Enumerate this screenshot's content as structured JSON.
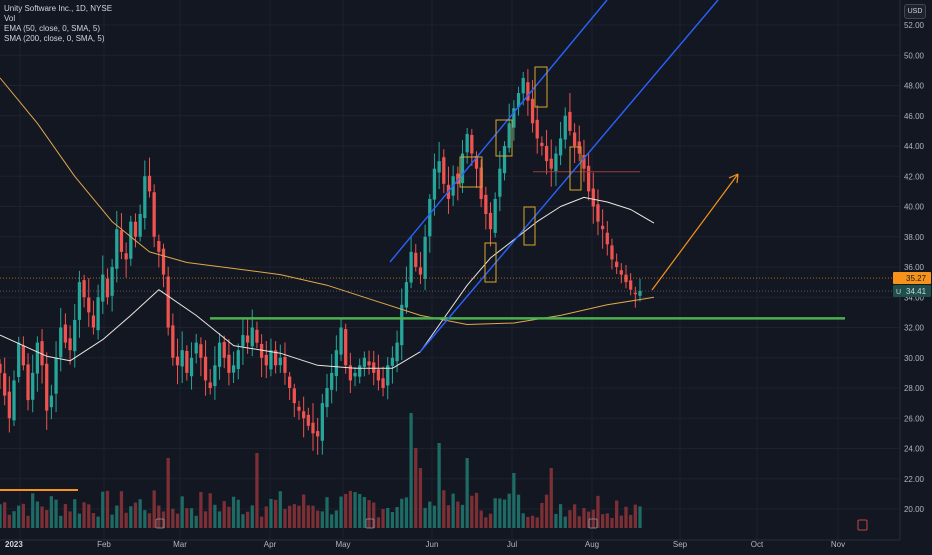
{
  "legend": {
    "title": "Unity Software Inc., 1D, NYSE",
    "vol": "Vol",
    "ema": "EMA (50, close, 0, SMA, 5)",
    "sma": "SMA (200, close, 0, SMA, 5)"
  },
  "currency_button": "USD",
  "price_tags": {
    "upper": "35.27",
    "lower": "34.41",
    "lower_prefix": "U"
  },
  "colors": {
    "background": "#131722",
    "up": "#26a69a",
    "down": "#ef5350",
    "vol_up": "#1e6a64",
    "vol_down": "#7c3036",
    "ema": "#e9e6e0",
    "sma": "#e0a84a",
    "channel": "#2962ff",
    "support": "#4caf50",
    "arrow": "#f7931a",
    "marker_box": "#d4a82a",
    "target_line": "#9c3a3a",
    "grid": "#1e2230"
  },
  "chart_data": {
    "type": "candlestick",
    "symbol": "Unity Software Inc., 1D, NYSE",
    "x_ticks": [
      "2023",
      "Feb",
      "Mar",
      "Apr",
      "May",
      "Jun",
      "Jul",
      "Aug",
      "Sep",
      "Oct",
      "Nov"
    ],
    "y_ticks": [
      "52.00",
      "50.00",
      "48.00",
      "46.00",
      "44.00",
      "42.00",
      "40.00",
      "38.00",
      "36.00",
      "34.00",
      "32.00",
      "30.00",
      "28.00",
      "26.00",
      "24.00",
      "22.00",
      "20.00"
    ],
    "ylim": [
      19.2,
      53
    ],
    "close_path": [
      29,
      27.5,
      26,
      28.5,
      31,
      29.5,
      27.2,
      29,
      31,
      29.5,
      26.5,
      27.5,
      30,
      32,
      31,
      30.5,
      32.5,
      35,
      34,
      33,
      32,
      34,
      35.5,
      34,
      36,
      38.5,
      37,
      36.5,
      39,
      38,
      39.5,
      42,
      41,
      38,
      37,
      35.5,
      32,
      30,
      29.5,
      30.5,
      29,
      30,
      31,
      30,
      28.5,
      28,
      29.5,
      31,
      30,
      29,
      29.5,
      30.5,
      31.5,
      31,
      32,
      31,
      30,
      29.5,
      30.5,
      29.5,
      30,
      29,
      28,
      27,
      26.5,
      26,
      25.5,
      25,
      24.8,
      27,
      28,
      29,
      30.5,
      32,
      29.5,
      28.5,
      29,
      29.5,
      30,
      29.5,
      29,
      28.5,
      28,
      29.5,
      30,
      31,
      33.5,
      35,
      37,
      36,
      35.5,
      38,
      40.5,
      42.5,
      43,
      41.5,
      40.5,
      42,
      41.5,
      43.5,
      44.8,
      43.5,
      42.5,
      40.5,
      39.5,
      38.5,
      40.5,
      42.5,
      44,
      45.5,
      46.5,
      47.5,
      48.5,
      47,
      45.5,
      44.5,
      44,
      43,
      42.5,
      43.5,
      44.5,
      46,
      45,
      44,
      43.5,
      42.5,
      41,
      40,
      39,
      38.5,
      37.5,
      36.5,
      36,
      35.5,
      35,
      34.5,
      34.2,
      34.41
    ],
    "ema50": [
      {
        "d": 0,
        "v": 31.5
      },
      {
        "d": 10,
        "v": 30.1
      },
      {
        "d": 15,
        "v": 29.8
      },
      {
        "d": 22,
        "v": 31.2
      },
      {
        "d": 28,
        "v": 32.8
      },
      {
        "d": 34,
        "v": 34.5
      },
      {
        "d": 42,
        "v": 32.8
      },
      {
        "d": 50,
        "v": 30.8
      },
      {
        "d": 60,
        "v": 30.3
      },
      {
        "d": 68,
        "v": 29.5
      },
      {
        "d": 76,
        "v": 29.3
      },
      {
        "d": 84,
        "v": 29.3
      },
      {
        "d": 90,
        "v": 30.4
      },
      {
        "d": 95,
        "v": 32.6
      },
      {
        "d": 100,
        "v": 34.8
      },
      {
        "d": 105,
        "v": 36.6
      },
      {
        "d": 110,
        "v": 37.8
      },
      {
        "d": 115,
        "v": 39.0
      },
      {
        "d": 120,
        "v": 40.0
      },
      {
        "d": 125,
        "v": 40.6
      },
      {
        "d": 130,
        "v": 40.3
      },
      {
        "d": 135,
        "v": 39.8
      },
      {
        "d": 140,
        "v": 38.9
      }
    ],
    "sma200": [
      {
        "d": 0,
        "v": 48.5
      },
      {
        "d": 8,
        "v": 45.5
      },
      {
        "d": 16,
        "v": 42.0
      },
      {
        "d": 24,
        "v": 39.0
      },
      {
        "d": 32,
        "v": 37.0
      },
      {
        "d": 40,
        "v": 36.3
      },
      {
        "d": 50,
        "v": 35.9
      },
      {
        "d": 60,
        "v": 35.5
      },
      {
        "d": 70,
        "v": 34.8
      },
      {
        "d": 80,
        "v": 33.8
      },
      {
        "d": 90,
        "v": 32.8
      },
      {
        "d": 100,
        "v": 32.2
      },
      {
        "d": 110,
        "v": 32.3
      },
      {
        "d": 120,
        "v": 32.8
      },
      {
        "d": 130,
        "v": 33.5
      },
      {
        "d": 140,
        "v": 34.0
      }
    ],
    "support_level": 32.6,
    "target_level": 42.3,
    "last_price": 34.41,
    "upper_price": 35.27
  }
}
